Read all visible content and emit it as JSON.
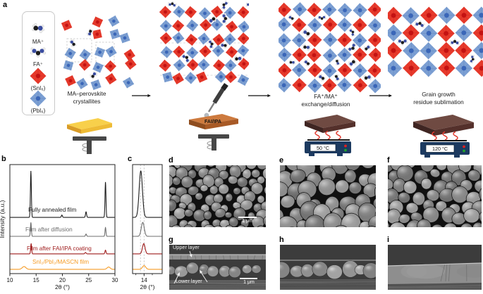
{
  "panel_labels": {
    "a": "a",
    "b": "b",
    "c": "c",
    "d": "d",
    "e": "e",
    "f": "f",
    "g": "g",
    "h": "h",
    "i": "i"
  },
  "legend": {
    "items": [
      {
        "glyph": "ma-molecule",
        "label": "MA⁺"
      },
      {
        "glyph": "fa-molecule",
        "label": "FA⁺"
      },
      {
        "glyph": "sni6-octahedron",
        "label": "(SnI₆)"
      },
      {
        "glyph": "pbi6-octahedron",
        "label": "(PbI₆)"
      }
    ]
  },
  "process": {
    "stage1": {
      "caption_line1": "MA–perovskite",
      "caption_line2": "crystallites"
    },
    "stage2": {
      "board_label": "FAI/IPA"
    },
    "stage3": {
      "caption_line1": "FA⁺/MA⁺",
      "caption_line2": "exchange/diffusion",
      "hotplate_temp": "50 °C"
    },
    "stage4": {
      "caption_line1": "Grain growth",
      "caption_line2": "residue sublimation",
      "hotplate_temp": "120 °C"
    }
  },
  "colors": {
    "sni6_red": "#e8392b",
    "sni6_core": "#c41212",
    "pbi6_blue": "#7b9fd4",
    "pbi6_core": "#3a66b8",
    "xrd_black": "#1c1c1c",
    "xrd_gray": "#6f6f6f",
    "xrd_darkred": "#9e1a1a",
    "xrd_orange": "#f59a23"
  },
  "chart_data": [
    {
      "id": "b",
      "type": "line",
      "xlabel": "2θ (°)",
      "ylabel": "Intensity (a.u.)",
      "xlim": [
        10,
        30
      ],
      "xticks": [
        10,
        15,
        20,
        25,
        30
      ],
      "grid": false,
      "series": [
        {
          "name": "Fully annealed film",
          "color": "#1c1c1c",
          "peaks": [
            {
              "two_theta": 14.0,
              "height": 1.0,
              "sigma": 0.09
            },
            {
              "two_theta": 19.9,
              "height": 0.05,
              "sigma": 0.1
            },
            {
              "two_theta": 24.5,
              "height": 0.12,
              "sigma": 0.1
            },
            {
              "two_theta": 28.2,
              "height": 0.76,
              "sigma": 0.09
            }
          ]
        },
        {
          "name": "Film after diffusion",
          "color": "#6f6f6f",
          "peaks": [
            {
              "two_theta": 14.0,
              "height": 0.3,
              "sigma": 0.09
            },
            {
              "two_theta": 24.5,
              "height": 0.05,
              "sigma": 0.1
            },
            {
              "two_theta": 28.2,
              "height": 0.19,
              "sigma": 0.09
            }
          ]
        },
        {
          "name": "Film after FAI/IPA coating",
          "color": "#9e1a1a",
          "peaks": [
            {
              "two_theta": 14.05,
              "height": 0.22,
              "sigma": 0.09
            },
            {
              "two_theta": 24.4,
              "height": 0.03,
              "sigma": 0.12
            },
            {
              "two_theta": 28.2,
              "height": 0.08,
              "sigma": 0.1
            }
          ]
        },
        {
          "name": "SnI₂/PbI₂/MASCN film",
          "color": "#f59a23",
          "peaks": [
            {
              "two_theta": 12.7,
              "height": 0.06,
              "sigma": 0.35
            },
            {
              "two_theta": 28.8,
              "height": 0.05,
              "sigma": 0.3
            }
          ]
        }
      ]
    },
    {
      "id": "c",
      "type": "line",
      "xlabel": "2θ (°)",
      "xlim": [
        13.3,
        15.1
      ],
      "xticks": [
        14
      ],
      "xticks_minor": [
        13.5,
        14.5
      ],
      "dashed_lines": [
        13.78,
        14.0
      ],
      "series": [
        {
          "name": "Fully annealed film",
          "color": "#1c1c1c",
          "peaks": [
            {
              "two_theta": 13.8,
              "height": 1.0,
              "sigma": 0.1
            }
          ]
        },
        {
          "name": "Film after diffusion",
          "color": "#6f6f6f",
          "peaks": [
            {
              "two_theta": 13.92,
              "height": 0.3,
              "sigma": 0.09
            }
          ]
        },
        {
          "name": "Film after FAI/IPA coating",
          "color": "#9e1a1a",
          "peaks": [
            {
              "two_theta": 13.98,
              "height": 0.22,
              "sigma": 0.08
            }
          ]
        },
        {
          "name": "SnI₂/PbI₂/MASCN film",
          "color": "#f59a23",
          "peaks": [
            {
              "two_theta": 14.0,
              "height": 0.08,
              "sigma": 0.1
            }
          ]
        }
      ]
    }
  ],
  "sem": {
    "d": {
      "scalebar": "1 μm"
    },
    "g": {
      "scalebar": "1 μm",
      "upper_label": "Upper layer",
      "lower_label": "Lower layer"
    }
  }
}
